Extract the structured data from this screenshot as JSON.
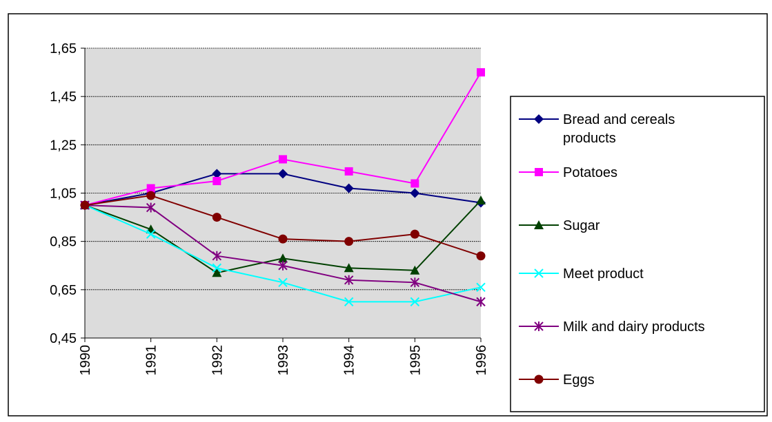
{
  "chart_data": {
    "type": "line",
    "categories": [
      "1990",
      "1991",
      "1992",
      "1993",
      "1994",
      "1995",
      "1996"
    ],
    "series": [
      {
        "name": "Bread and cereals products",
        "color": "#000080",
        "marker": "diamond",
        "values": [
          1.0,
          1.05,
          1.13,
          1.13,
          1.07,
          1.05,
          1.01
        ]
      },
      {
        "name": "Potatoes",
        "color": "#ff00ff",
        "marker": "square",
        "values": [
          1.0,
          1.07,
          1.1,
          1.19,
          1.14,
          1.09,
          1.55
        ]
      },
      {
        "name": "Sugar",
        "color": "#004000",
        "marker": "triangle",
        "values": [
          1.0,
          0.9,
          0.72,
          0.78,
          0.74,
          0.73,
          1.02
        ]
      },
      {
        "name": "Meet product",
        "color": "#00ffff",
        "marker": "x",
        "values": [
          1.0,
          0.88,
          0.74,
          0.68,
          0.6,
          0.6,
          0.66
        ]
      },
      {
        "name": "Milk and dairy products",
        "color": "#800080",
        "marker": "star",
        "values": [
          1.0,
          0.99,
          0.79,
          0.75,
          0.69,
          0.68,
          0.6
        ]
      },
      {
        "name": "Eggs",
        "color": "#800000",
        "marker": "circle",
        "values": [
          1.0,
          1.04,
          0.95,
          0.86,
          0.85,
          0.88,
          0.79
        ]
      }
    ],
    "ylim": [
      0.45,
      1.65
    ],
    "yticks": [
      {
        "value": 0.45,
        "label": "0,45"
      },
      {
        "value": 0.65,
        "label": "0,65"
      },
      {
        "value": 0.85,
        "label": "0,85"
      },
      {
        "value": 1.05,
        "label": "1,05"
      },
      {
        "value": 1.25,
        "label": "1,25"
      },
      {
        "value": 1.45,
        "label": "1,45"
      },
      {
        "value": 1.65,
        "label": "1,65"
      }
    ],
    "grid": true,
    "legend": "right"
  }
}
